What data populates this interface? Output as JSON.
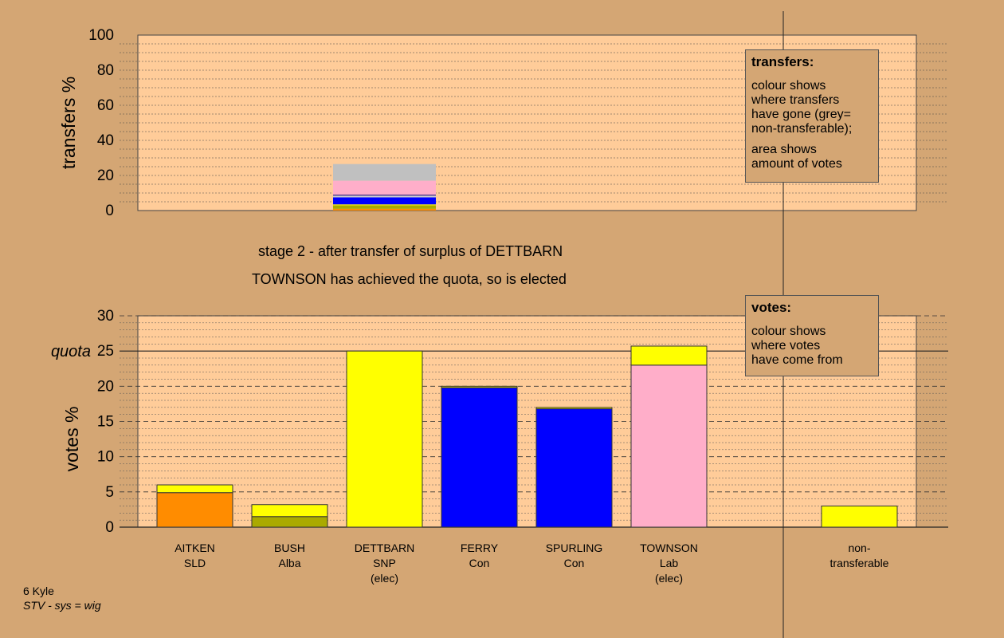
{
  "chart_data": [
    {
      "type": "bar",
      "stacked": true,
      "ylabel": "transfers %",
      "ylim": [
        0,
        100
      ],
      "yticks": [
        0,
        20,
        40,
        60,
        80,
        100
      ],
      "bar": {
        "label": "DETTBARN",
        "total": 26.5,
        "segments": [
          {
            "color": "#ff8c00",
            "value": 1.0
          },
          {
            "color": "#aaaa00",
            "value": 2.0
          },
          {
            "color": "#ffff00",
            "value": 0.5
          },
          {
            "color": "#0000ff",
            "value": 4.0
          },
          {
            "color": "#d0d0d0",
            "value": 1.0
          },
          {
            "color": "#000080",
            "value": 0.5
          },
          {
            "color": "#ffaec9",
            "value": 8.0
          },
          {
            "color": "#c0c0c0",
            "value": 9.5
          }
        ]
      },
      "legend_box": {
        "title": "transfers:",
        "lines1": [
          "colour shows",
          "where transfers",
          "have gone (grey=",
          "non-transferable);"
        ],
        "lines2": [
          "area shows",
          "amount of votes"
        ]
      }
    },
    {
      "type": "bar",
      "stacked": true,
      "ylabel": "votes %",
      "ylim": [
        0,
        30
      ],
      "yticks": [
        0,
        5,
        10,
        15,
        20,
        25,
        30
      ],
      "quota": 25,
      "quota_label": "quota",
      "candidates": [
        {
          "name": "AITKEN",
          "party": "SLD",
          "note": "",
          "segments": [
            {
              "color": "#ff8c00",
              "value": 4.9
            },
            {
              "color": "#ffff00",
              "value": 1.1
            }
          ]
        },
        {
          "name": "BUSH",
          "party": "Alba",
          "note": "",
          "segments": [
            {
              "color": "#aaaa00",
              "value": 1.5
            },
            {
              "color": "#ffff00",
              "value": 1.7
            }
          ]
        },
        {
          "name": "DETTBARN",
          "party": "SNP",
          "note": "(elec)",
          "segments": [
            {
              "color": "#ffff00",
              "value": 25.0
            }
          ]
        },
        {
          "name": "FERRY",
          "party": "Con",
          "note": "",
          "segments": [
            {
              "color": "#0000ff",
              "value": 19.8
            },
            {
              "color": "#ffff00",
              "value": 0.2
            }
          ]
        },
        {
          "name": "SPURLING",
          "party": "Con",
          "note": "",
          "segments": [
            {
              "color": "#0000ff",
              "value": 16.8
            },
            {
              "color": "#ffff00",
              "value": 0.2
            }
          ]
        },
        {
          "name": "TOWNSON",
          "party": "Lab",
          "note": "(elec)",
          "segments": [
            {
              "color": "#ffaec9",
              "value": 23.0
            },
            {
              "color": "#ffff00",
              "value": 2.7
            }
          ]
        },
        {
          "name": "non-",
          "party": "transferable",
          "note": "",
          "segments": [
            {
              "color": "#ffff00",
              "value": 3.0
            }
          ]
        }
      ],
      "legend_box": {
        "title": "votes:",
        "lines1": [
          "colour shows",
          "where votes",
          "have come from"
        ]
      }
    }
  ],
  "captions": {
    "stage": "stage 2 - after transfer of surplus of DETTBARN",
    "elected": "TOWNSON has achieved the quota, so is elected"
  },
  "footer": {
    "line1": "6 Kyle",
    "line2": "STV - sys = wig"
  },
  "colors": {
    "background": "#d4a674",
    "plot_area": "#ffcc99"
  }
}
